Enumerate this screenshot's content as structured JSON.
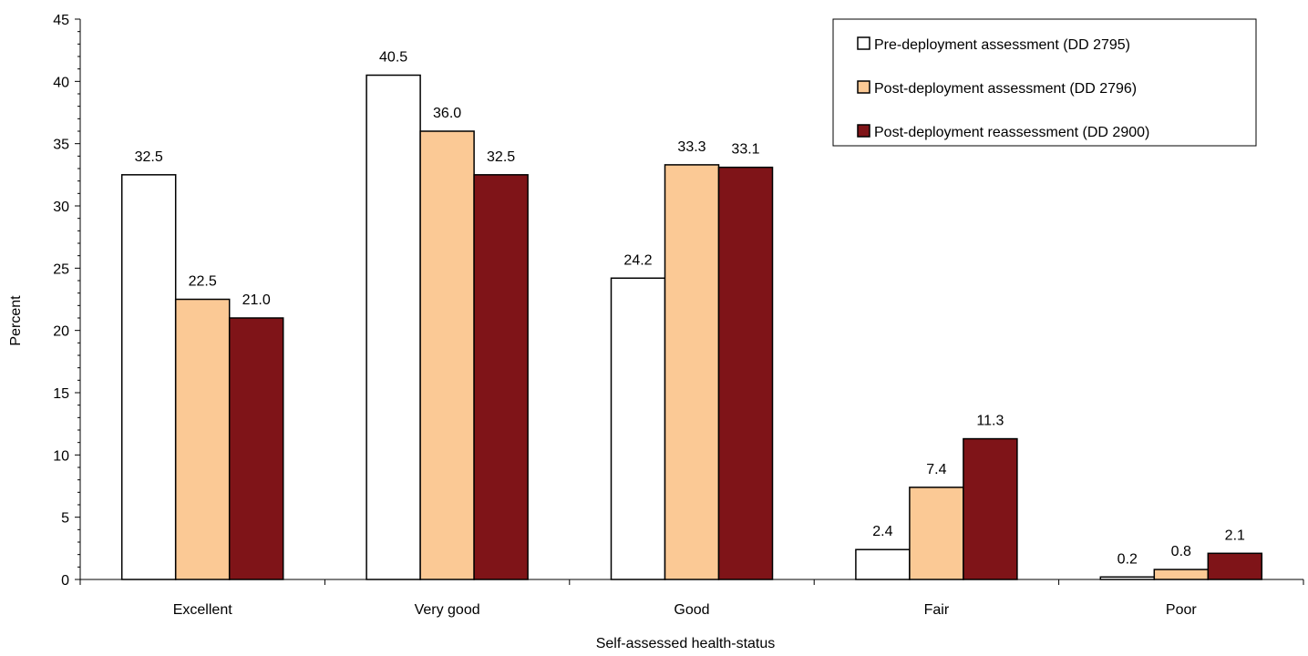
{
  "chart_data": {
    "type": "bar",
    "categories": [
      "Excellent",
      "Very good",
      "Good",
      "Fair",
      "Poor"
    ],
    "series": [
      {
        "name": "Pre-deployment assessment (DD 2795)",
        "values": [
          32.5,
          40.5,
          24.2,
          2.4,
          0.2
        ],
        "color": "#ffffff"
      },
      {
        "name": "Post-deployment assessment (DD 2796)",
        "values": [
          22.5,
          36.0,
          33.3,
          7.4,
          0.8
        ],
        "color": "#fbc995"
      },
      {
        "name": "Post-deployment reassessment (DD 2900)",
        "values": [
          21.0,
          32.5,
          33.1,
          11.3,
          2.1
        ],
        "color": "#7f1418"
      }
    ],
    "xlabel": "Self-assessed health-status",
    "ylabel": "Percent",
    "ylim": [
      0,
      45
    ],
    "yticks": [
      0,
      5,
      10,
      15,
      20,
      25,
      30,
      35,
      40,
      45
    ],
    "value_format_decimals": 1,
    "grid": false,
    "legend_position": "top-right"
  }
}
